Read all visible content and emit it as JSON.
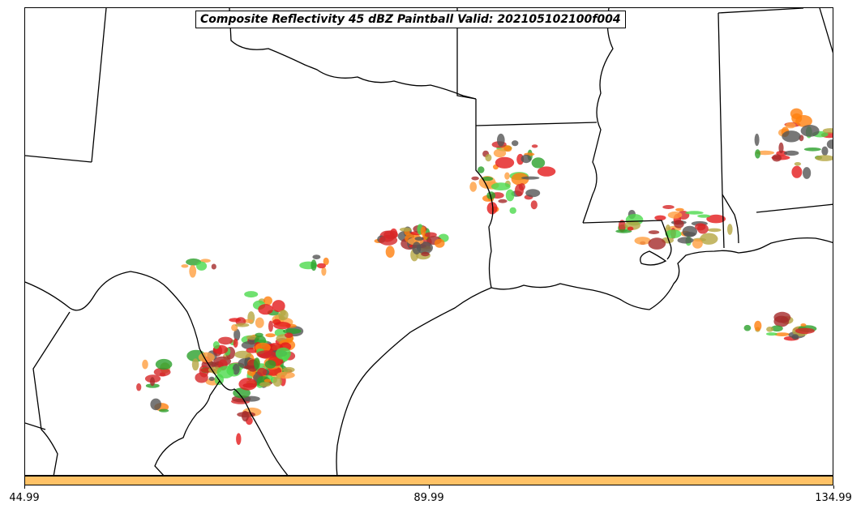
{
  "title": "Composite Reflectivity 45 dBZ Paintball Valid: 202105102100f004",
  "colorbar": {
    "color": "#ffc266",
    "ticks": [
      {
        "label": "44.99",
        "value": 44.99
      },
      {
        "label": "89.99",
        "value": 89.99
      },
      {
        "label": "134.99",
        "value": 134.99
      }
    ],
    "range": [
      44.99,
      134.99
    ]
  },
  "map": {
    "region": "Texas, Louisiana and surrounding southern US states",
    "boundary_color": "#000000",
    "paintball_colors": [
      "#e31a1c",
      "#ff7f0e",
      "#2ca02c",
      "#4cd94c",
      "#b5a642",
      "#555555",
      "#a52a2a",
      "#ff9f40",
      "#d62728"
    ]
  },
  "storm_clusters": [
    {
      "name": "south-texas-rio-grande",
      "members": "many"
    },
    {
      "name": "west-central-texas",
      "members": "few"
    },
    {
      "name": "north-central-texas",
      "members": "several"
    },
    {
      "name": "arkansas-louisiana-border",
      "members": "many"
    },
    {
      "name": "southern-mississippi-louisiana",
      "members": "many"
    },
    {
      "name": "alabama-georgia",
      "members": "several"
    },
    {
      "name": "gulf-offshore",
      "members": "several"
    }
  ]
}
